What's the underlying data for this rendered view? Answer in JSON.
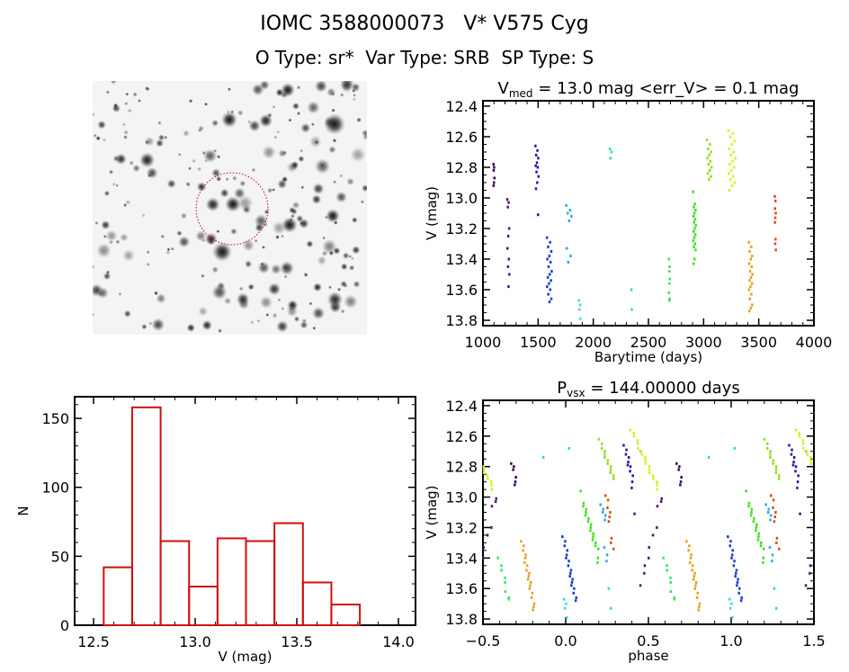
{
  "header": {
    "title": "IOMC 3588000073   V* V575 Cyg",
    "subtitle": "O Type: sr*  Var Type: SRB  SP Type: S"
  },
  "image_panel": {
    "marker_color": "#cc0000",
    "background": "#f4f4f4"
  },
  "chart_data": [
    {
      "type": "scatter",
      "title": "V_med = 13.0 mag <err_V> = 0.1 mag",
      "title_parts": {
        "main": "V",
        "sub": "med",
        "rest": " = 13.0 mag <err_V> = 0.1 mag"
      },
      "xlabel": "Barytime (days)",
      "ylabel": "V (mag)",
      "xlim": [
        1000,
        4000
      ],
      "ylim": [
        13.835,
        12.365
      ],
      "y_inverted": true,
      "xticks": [
        1000,
        1500,
        2000,
        2500,
        3000,
        3500,
        4000
      ],
      "yticks": [
        "12.4",
        "12.6",
        "12.8",
        "13.0",
        "13.2",
        "13.4",
        "13.6",
        "13.8"
      ],
      "grid": false
    },
    {
      "type": "bar",
      "subtype": "histogram",
      "xlabel": "V (mag)",
      "ylabel": "N",
      "xlim": [
        12.407,
        14.084
      ],
      "ylim": [
        0,
        165.7
      ],
      "xticks": [
        "12.5",
        "13.0",
        "13.5",
        "14.0"
      ],
      "yticks": [
        "0",
        "50",
        "100",
        "150"
      ],
      "bin_edges": [
        12.55,
        12.69,
        12.83,
        12.97,
        13.11,
        13.25,
        13.39,
        13.53,
        13.67,
        13.81
      ],
      "values": [
        42,
        158,
        61,
        28,
        63,
        61,
        74,
        31,
        15
      ],
      "color": "#d01010",
      "grid": false
    },
    {
      "type": "scatter",
      "title": "P_vsx = 144.00000 days",
      "title_parts": {
        "main": "P",
        "sub": "vsx",
        "rest": " = 144.00000 days"
      },
      "xlabel": "phase",
      "ylabel": "V (mag)",
      "xlim": [
        -0.5,
        1.5
      ],
      "ylim": [
        13.835,
        12.365
      ],
      "y_inverted": true,
      "xticks": [
        "-0.5",
        "0.0",
        "0.5",
        "1.0",
        "1.5"
      ],
      "yticks": [
        "12.4",
        "12.6",
        "12.8",
        "13.0",
        "13.2",
        "13.4",
        "13.6",
        "13.8"
      ],
      "period_days": 144.0,
      "grid": false
    }
  ],
  "observations": [
    {
      "color": "#3a0a50",
      "t": [
        1095,
        1105
      ],
      "phase": [
        0.68,
        0.7
      ],
      "V": [
        12.78,
        12.8,
        12.82,
        12.87,
        12.9,
        12.92
      ]
    },
    {
      "color": "#50157a",
      "t": [
        1220,
        1240
      ],
      "phase": [
        0.59,
        0.45
      ],
      "V": [
        13.01,
        13.03,
        13.06,
        13.2,
        13.25,
        13.33,
        13.4,
        13.45,
        13.5,
        13.58
      ]
    },
    {
      "color": "#2818a8",
      "t": [
        1475,
        1505
      ],
      "phase": [
        0.36,
        0.41
      ],
      "V": [
        12.66,
        12.69,
        12.72,
        12.74,
        12.77,
        12.79,
        12.8,
        12.83,
        12.86,
        12.9,
        12.94,
        13.11
      ]
    },
    {
      "color": "#1840d0",
      "t": [
        1580,
        1625
      ],
      "phase": [
        -0.01,
        0.06
      ],
      "V": [
        13.26,
        13.29,
        13.32,
        13.35,
        13.38,
        13.4,
        13.42,
        13.45,
        13.48,
        13.5,
        13.52,
        13.54,
        13.56,
        13.58,
        13.6,
        13.63,
        13.66,
        13.68
      ]
    },
    {
      "color": "#30a8e8",
      "t": [
        1755,
        1810
      ],
      "phase": [
        0.22,
        0.25
      ],
      "V": [
        13.05,
        13.08,
        13.1,
        13.12,
        13.15,
        13.33,
        13.38,
        13.42
      ]
    },
    {
      "color": "#40d8e8",
      "t": [
        1870,
        1885
      ],
      "phase": [
        0.0,
        0.0
      ],
      "V": [
        13.67,
        13.7,
        13.73,
        13.79
      ]
    },
    {
      "color": "#30e0b0",
      "t": [
        2150,
        2175
      ],
      "phase": [
        0.03,
        0.87
      ],
      "V": [
        12.68,
        12.7,
        12.74
      ]
    },
    {
      "color": "#30e088",
      "t": [
        2345,
        2350
      ],
      "phase": [
        0.27,
        0.27
      ],
      "V": [
        13.6,
        13.73
      ]
    },
    {
      "color": "#40e060",
      "t": [
        2685,
        2695
      ],
      "phase": [
        0.6,
        0.66
      ],
      "V": [
        13.4,
        13.45,
        13.48,
        13.53,
        13.56,
        13.62,
        13.66,
        13.67
      ]
    },
    {
      "color": "#40e020",
      "t": [
        2905,
        2930
      ],
      "phase": [
        0.1,
        0.2
      ],
      "V": [
        12.96,
        13.04,
        13.06,
        13.08,
        13.1,
        13.12,
        13.14,
        13.16,
        13.18,
        13.2,
        13.22,
        13.24,
        13.26,
        13.28,
        13.3,
        13.32,
        13.34,
        13.4,
        13.43
      ]
    },
    {
      "color": "#90e020",
      "t": [
        3030,
        3075
      ],
      "phase": [
        0.21,
        0.29
      ],
      "V": [
        12.62,
        12.65,
        12.68,
        12.7,
        12.72,
        12.74,
        12.76,
        12.78,
        12.8,
        12.82,
        12.84,
        12.86,
        12.88
      ]
    },
    {
      "color": "#d8f020",
      "t": [
        3225,
        3290
      ],
      "phase": [
        0.4,
        0.56
      ],
      "V": [
        12.56,
        12.58,
        12.6,
        12.63,
        12.65,
        12.68,
        12.7,
        12.72,
        12.74,
        12.76,
        12.78,
        12.8,
        12.82,
        12.84,
        12.86,
        12.88,
        12.9,
        12.92,
        12.95
      ]
    },
    {
      "color": "#e8a020",
      "t": [
        3410,
        3445
      ],
      "phase": [
        0.74,
        0.81
      ],
      "V": [
        13.29,
        13.32,
        13.35,
        13.38,
        13.4,
        13.43,
        13.45,
        13.48,
        13.5,
        13.52,
        13.54,
        13.56,
        13.58,
        13.6,
        13.63,
        13.66,
        13.7,
        13.72,
        13.74
      ]
    },
    {
      "color": "#d85010",
      "t": [
        3645,
        3655
      ],
      "phase": [
        0.25,
        0.28
      ],
      "V": [
        12.99,
        13.02,
        13.07,
        13.1,
        13.13,
        13.16,
        13.27,
        13.3,
        13.34
      ]
    }
  ]
}
